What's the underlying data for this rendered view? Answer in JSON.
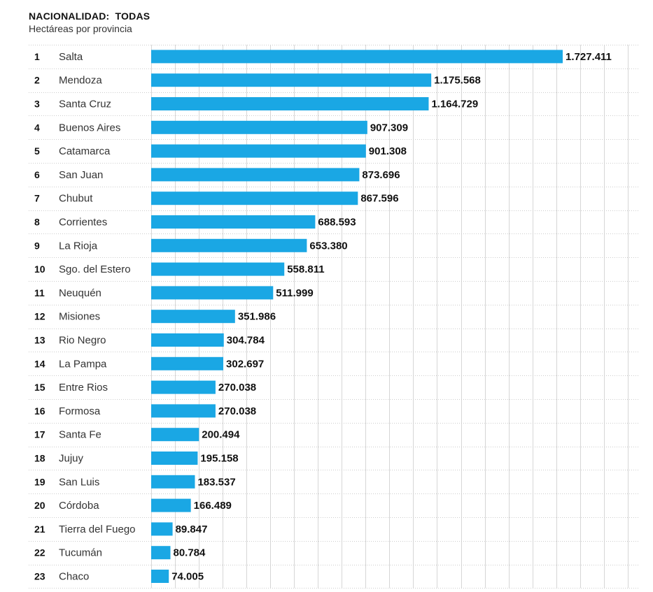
{
  "header": {
    "title": "NACIONALIDAD:  TODAS",
    "subtitle": "Hectáreas por provincia"
  },
  "colors": {
    "bar": "#1aa7e4",
    "grid": "#d6d6d6",
    "row_separator": "#cccccc"
  },
  "chart_data": {
    "type": "bar",
    "orientation": "horizontal",
    "title": "NACIONALIDAD:  TODAS",
    "subtitle": "Hectáreas por provincia",
    "xlabel": "",
    "ylabel": "",
    "grid": true,
    "xlim": [
      0,
      2000000
    ],
    "ranks": [
      "1",
      "2",
      "3",
      "4",
      "5",
      "6",
      "7",
      "8",
      "9",
      "10",
      "11",
      "12",
      "13",
      "14",
      "15",
      "16",
      "17",
      "18",
      "19",
      "20",
      "21",
      "22",
      "23"
    ],
    "categories": [
      "Salta",
      "Mendoza",
      "Santa Cruz",
      "Buenos Aires",
      "Catamarca",
      "San Juan",
      "Chubut",
      "Corrientes",
      "La Rioja",
      "Sgo. del Estero",
      "Neuquén",
      "Misiones",
      "Rio Negro",
      "La Pampa",
      "Entre Rios",
      "Formosa",
      "Santa Fe",
      "Jujuy",
      "San Luis",
      "Córdoba",
      "Tierra del Fuego",
      "Tucumán",
      "Chaco"
    ],
    "values": [
      1727411,
      1175568,
      1164729,
      907309,
      901308,
      873696,
      867596,
      688593,
      653380,
      558811,
      511999,
      351986,
      304784,
      302697,
      270038,
      270038,
      200494,
      195158,
      183537,
      166489,
      89847,
      80784,
      74005
    ],
    "value_labels": [
      "1.727.411",
      "1.175.568",
      "1.164.729",
      "907.309",
      "901.308",
      "873.696",
      "867.596",
      "688.593",
      "653.380",
      "558.811",
      "511.999",
      "351.986",
      "304.784",
      "302.697",
      "270.038",
      "270.038",
      "200.494",
      "195.158",
      "183.537",
      "166.489",
      "89.847",
      "80.784",
      "74.005"
    ]
  }
}
